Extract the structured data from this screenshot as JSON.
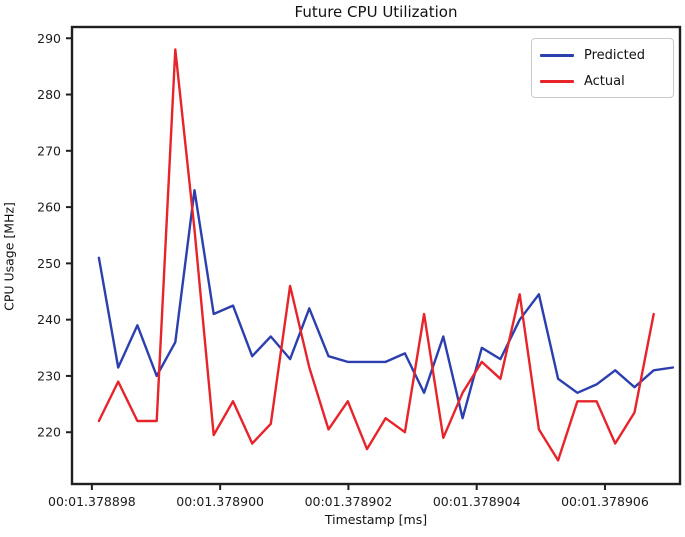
{
  "figure": {
    "title": "Future CPU Utilization",
    "x_axis_label": "Timestamp [ms]",
    "y_axis_label": "CPU Usage [MHz]"
  },
  "legend": {
    "position": "upper right",
    "entries": [
      {
        "label": "Predicted",
        "color": "#2b3fae"
      },
      {
        "label": "Actual",
        "color": "#e8242b"
      }
    ]
  },
  "colors": {
    "predicted_line": "#2b3fae",
    "actual_line": "#e8242b",
    "axis_spine": "#1f1f1f",
    "text": "#1a1a1a",
    "legend_border": "#c9c9c9",
    "background": "#ffffff"
  },
  "chart_data": {
    "type": "line",
    "title": "Future CPU Utilization",
    "xlabel": "Timestamp [ms]",
    "ylabel": "CPU Usage [MHz]",
    "grid": false,
    "legend_position": "upper right",
    "x_unit_note": "x values are microseconds after 00:01.378898",
    "xlim": [
      -0.31,
      9.17
    ],
    "ylim": [
      210.8,
      292.0
    ],
    "x_tick_values": [
      0,
      2,
      4,
      6,
      8
    ],
    "x_tick_labels": [
      "00:01.378898",
      "00:01.378900",
      "00:01.378902",
      "00:01.378904",
      "00:01.378906"
    ],
    "y_ticks": [
      220,
      230,
      240,
      250,
      260,
      270,
      280,
      290
    ],
    "y_tick_labels": [
      "220",
      "230",
      "240",
      "250",
      "260",
      "270",
      "280",
      "290"
    ],
    "series": [
      {
        "name": "Predicted",
        "color": "#2b3fae",
        "x": [
          0.11,
          0.41,
          0.71,
          1.01,
          1.3,
          1.6,
          1.9,
          2.2,
          2.5,
          2.79,
          3.09,
          3.39,
          3.69,
          3.99,
          4.29,
          4.58,
          4.88,
          5.18,
          5.48,
          5.78,
          6.08,
          6.37,
          6.67,
          6.97,
          7.27,
          7.57,
          7.87,
          8.16,
          8.46,
          8.76,
          9.06
        ],
        "values": [
          251,
          231.5,
          239,
          230,
          236,
          263,
          241,
          242.5,
          233.5,
          237,
          233,
          242,
          233.5,
          232.5,
          232.5,
          232.5,
          234,
          227,
          237,
          222.5,
          235,
          233,
          240,
          244.5,
          229.5,
          227,
          228.5,
          231,
          228,
          231,
          231.5
        ]
      },
      {
        "name": "Actual",
        "color": "#e8242b",
        "x": [
          0.11,
          0.41,
          0.71,
          1.01,
          1.3,
          1.6,
          1.9,
          2.2,
          2.5,
          2.79,
          3.09,
          3.39,
          3.69,
          3.99,
          4.29,
          4.58,
          4.88,
          5.18,
          5.48,
          5.78,
          6.08,
          6.37,
          6.67,
          6.97,
          7.27,
          7.57,
          7.87,
          8.16,
          8.46,
          8.76
        ],
        "values": [
          222,
          229,
          222,
          222,
          288,
          256,
          219.5,
          225.5,
          218,
          221.5,
          246,
          231.5,
          220.5,
          225.5,
          217,
          222.5,
          220,
          241,
          219,
          227,
          232.5,
          229.5,
          244.5,
          220.5,
          215,
          225.5,
          225.5,
          218,
          223.5,
          241
        ]
      }
    ]
  }
}
